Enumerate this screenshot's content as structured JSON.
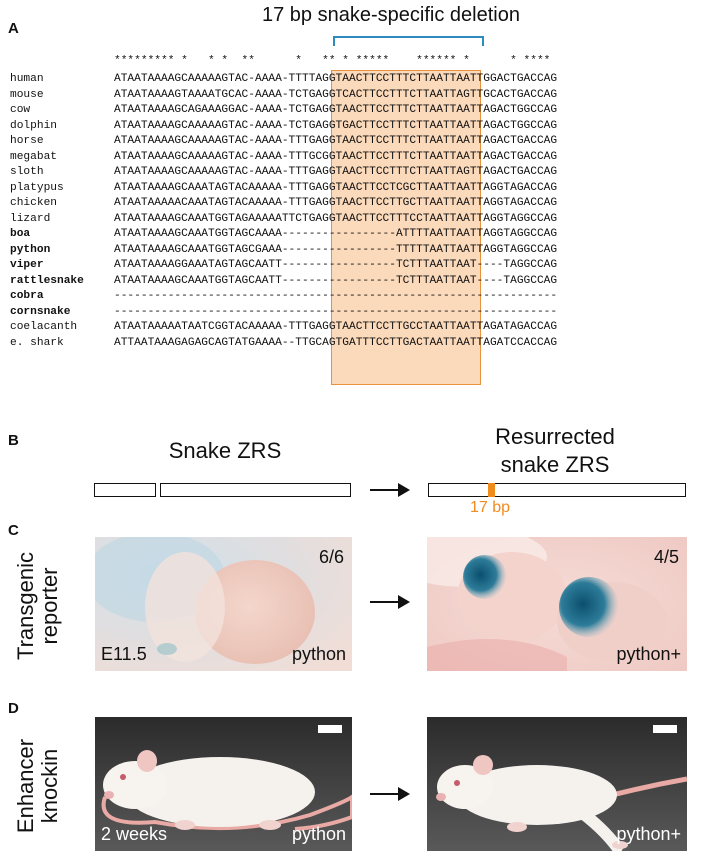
{
  "panels": {
    "a": "A",
    "b": "B",
    "c": "C",
    "d": "D"
  },
  "panel_a": {
    "title": "17 bp snake-specific deletion",
    "conservation": "********* *   * *  **      *   ** * *****    ****** *      * ****",
    "species": [
      {
        "name": "human",
        "bold": false,
        "seq": "ATAATAAAAGCAAAAAGTAC-AAAA-TTTTAGGTAACTTCCTTTCTTAATTAATTGGACTGACCAG"
      },
      {
        "name": "mouse",
        "bold": false,
        "seq": "ATAATAAAAGTAAAATGCAC-AAAA-TCTGAGGTCACTTCCTTTCTTAATTAGTTGCACTGACCAG"
      },
      {
        "name": "cow",
        "bold": false,
        "seq": "ATAATAAAAGCAGAAAGGAC-AAAA-TCTGAGGTAACTTCCTTTCTTAATTAATTAGACTGGCCAG"
      },
      {
        "name": "dolphin",
        "bold": false,
        "seq": "ATAATAAAAGCAAAAAGTAC-AAAA-TCTGAGGTGACTTCCTTTCTTAATTAATTAGACTGGCCAG"
      },
      {
        "name": "horse",
        "bold": false,
        "seq": "ATAATAAAAGCAAAAAGTAC-AAAA-TTTGAGGTAACTTCCTTTCTTAATTAATTAGACTGACCAG"
      },
      {
        "name": "megabat",
        "bold": false,
        "seq": "ATAATAAAAGCAAAAAGTAC-AAAA-TTTGCGGTAACTTCCTTTCTTAATTAATTAGACTGACCAG"
      },
      {
        "name": "sloth",
        "bold": false,
        "seq": "ATAATAAAAGCAAAAAGTAC-AAAA-TTTGAGGTAACTTCCTTTCTTAATTAGTTAGACTGACCAG"
      },
      {
        "name": "platypus",
        "bold": false,
        "seq": "ATAATAAAAGCAAATAGTACAAAAA-TTTGAGGTAACTTCCTCGCTTAATTAATTAGGTAGACCAG"
      },
      {
        "name": "chicken",
        "bold": false,
        "seq": "ATAATAAAAACAAATAGTACAAAAA-TTTGAGGTAACTTCCTTGCTTAATTAATTAGGTAGACCAG"
      },
      {
        "name": "lizard",
        "bold": false,
        "seq": "ATAATAAAAGCAAATGGTAGAAAAATTCTGAGGTAACTTCCTTTCCTAATTAATTAGGTAGGCCAG"
      },
      {
        "name": "boa",
        "bold": true,
        "seq": "ATAATAAAAGCAAATGGTAGCAAAA-----------------ATTTTAATTAATTAGGTAGGCCAG"
      },
      {
        "name": "python",
        "bold": true,
        "seq": "ATAATAAAAGCAAATGGTAGCGAAA-----------------TTTTTAATTAATTAGGTAGGCCAG"
      },
      {
        "name": "viper",
        "bold": true,
        "seq": "ATAATAAAAGGAAATAGTAGCAATT-----------------TCTTTAATTAAT----TAGGCCAG"
      },
      {
        "name": "rattlesnake",
        "bold": true,
        "seq": "ATAATAAAAGCAAATGGTAGCAATT-----------------TCTTTAATTAAT----TAGGCCAG"
      },
      {
        "name": "cobra",
        "bold": true,
        "seq": "------------------------------------------------------------------"
      },
      {
        "name": "cornsnake",
        "bold": true,
        "seq": "------------------------------------------------------------------"
      },
      {
        "name": "coelacanth",
        "bold": false,
        "seq": "ATAATAAAAATAATCGGTACAAAAA-TTTGAGGTAACTTCCTTGCCTAATTAATTAGATAGACCAG"
      },
      {
        "name": "e. shark",
        "bold": false,
        "seq": "ATTAATAAAGAGAGCAGTATGAAAA--TTGCAGTGATTTCCTTGACTAATTAATTAGATCCACCAG"
      }
    ]
  },
  "panel_b": {
    "left_title": "Snake ZRS",
    "right_title_line1": "Resurrected",
    "right_title_line2": "snake ZRS",
    "insert_label": "17 bp",
    "insert_color": "#f08c1e"
  },
  "panel_c": {
    "side_label_line1": "Transgenic",
    "side_label_line2": "reporter",
    "left": {
      "count": "6/6",
      "stage": "E11.5",
      "genotype": "python"
    },
    "right": {
      "count": "4/5",
      "genotype": "python+"
    }
  },
  "panel_d": {
    "side_label_line1": "Enhancer",
    "side_label_line2": "knockin",
    "left": {
      "age": "2 weeks",
      "genotype": "python"
    },
    "right": {
      "genotype": "python+"
    }
  },
  "colors": {
    "bracket": "#2e8bc0",
    "deletion_fill": "#fbd9bb",
    "deletion_border": "#e8933c",
    "lacz_blue": "#0f5f82"
  }
}
